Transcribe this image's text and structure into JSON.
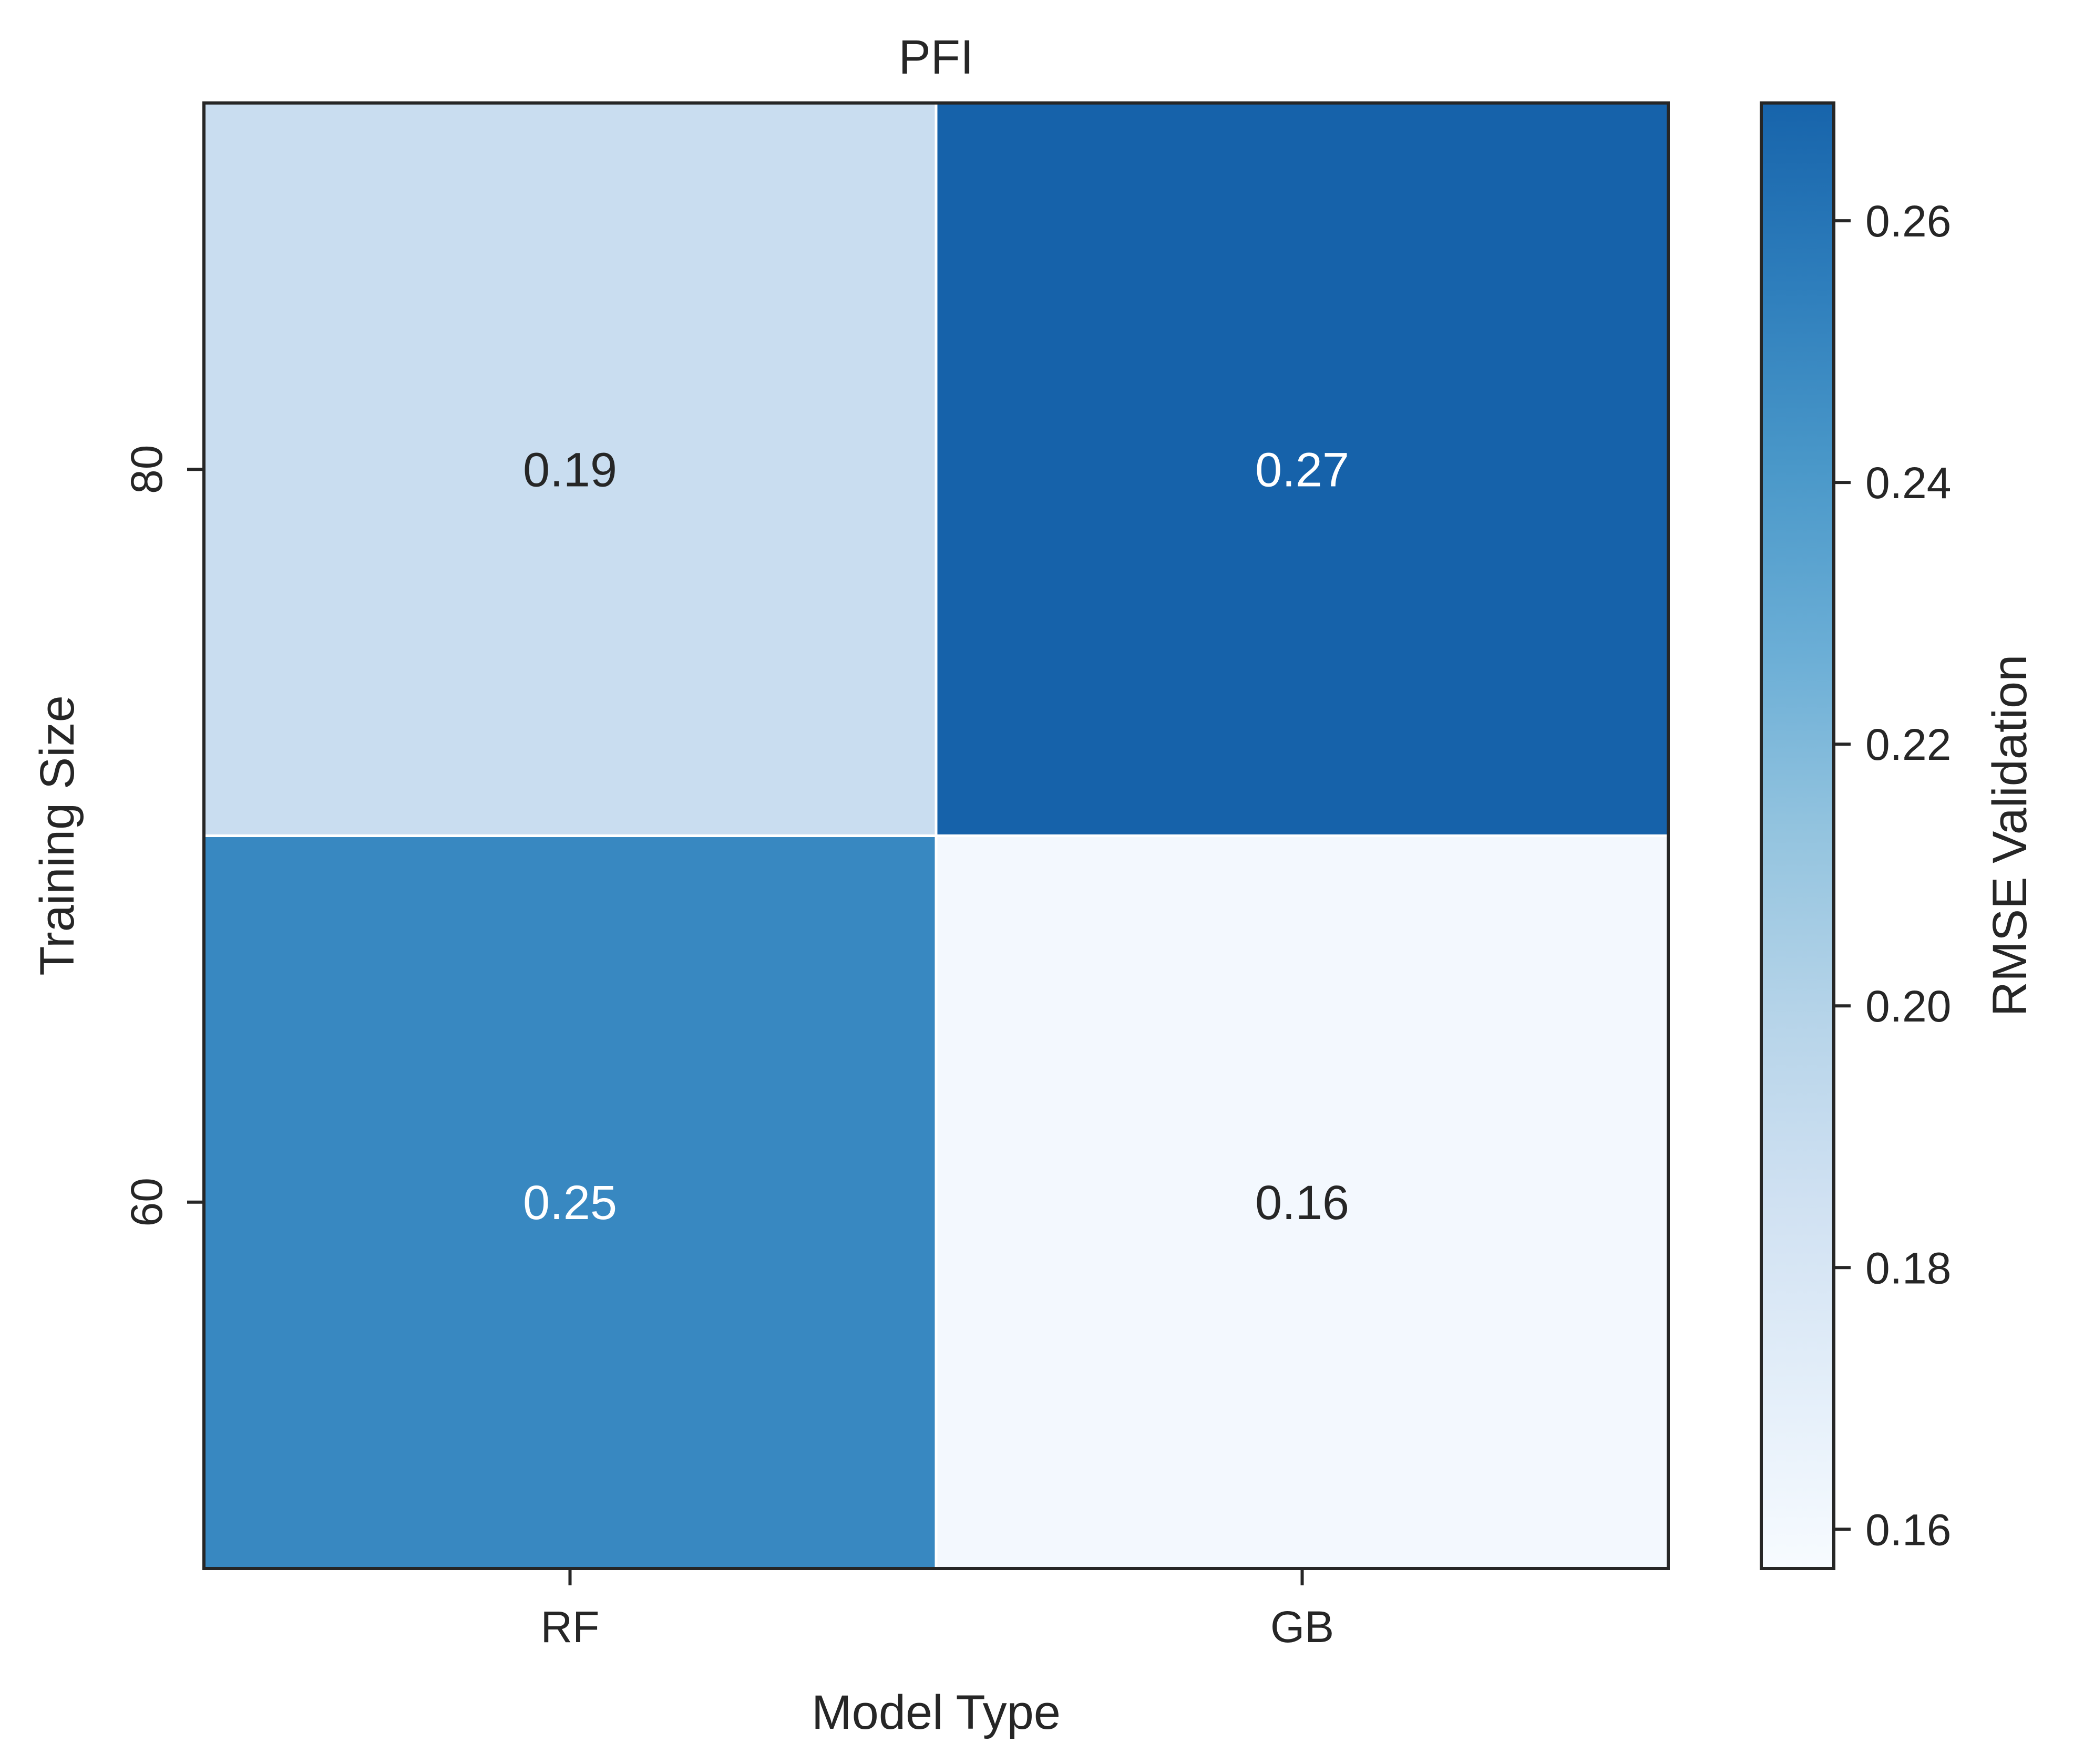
{
  "chart_data": {
    "type": "heatmap",
    "title": "PFI",
    "xlabel": "Model Type",
    "ylabel": "Training Size",
    "x_categories": [
      "RF",
      "GB"
    ],
    "y_categories": [
      "80",
      "60"
    ],
    "values": [
      [
        0.19,
        0.27
      ],
      [
        0.25,
        0.16
      ]
    ],
    "value_labels": [
      [
        "0.19",
        "0.27"
      ],
      [
        "0.25",
        "0.16"
      ]
    ],
    "colorbar": {
      "label": "RMSE Validation",
      "colormap": "Blues",
      "range": [
        0.157,
        0.269
      ],
      "ticks": [
        0.16,
        0.18,
        0.2,
        0.22,
        0.24,
        0.26
      ],
      "tick_labels": [
        "0.16",
        "0.18",
        "0.20",
        "0.22",
        "0.24",
        "0.26"
      ]
    },
    "colors": {
      "axis": "#262626",
      "text_dark": "#262626",
      "text_light": "#ffffff",
      "cell_gap": "#ffffff"
    }
  }
}
